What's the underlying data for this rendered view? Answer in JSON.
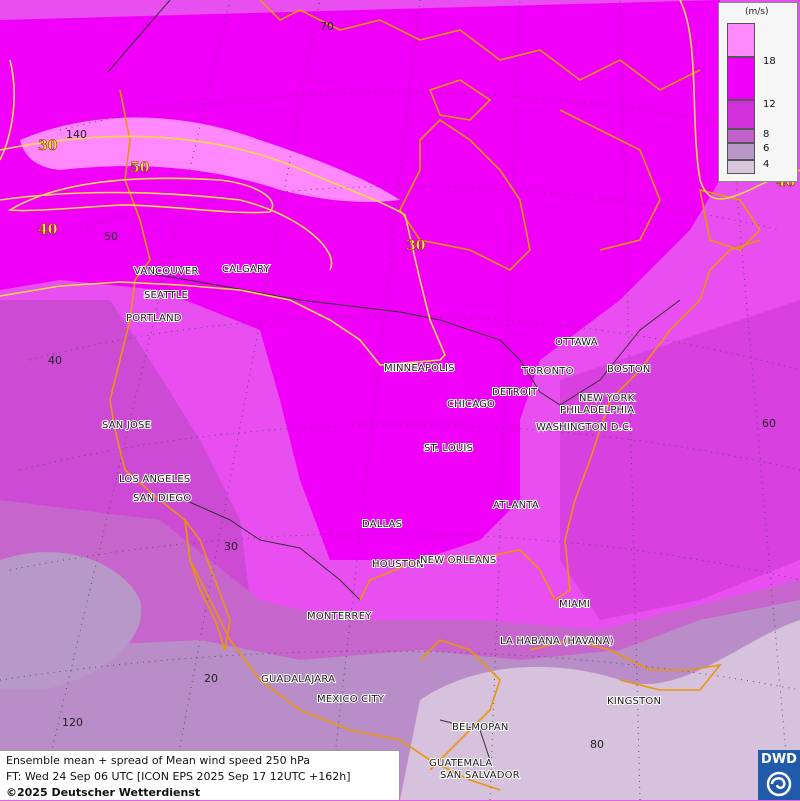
{
  "legend": {
    "unit": "(m/s)",
    "ticks": [
      "18",
      "12",
      "8",
      "6",
      "4"
    ],
    "colors": [
      "#ff88ff",
      "#f000f8",
      "#d030d8",
      "#c060c8",
      "#b898c8",
      "#d8c4dc"
    ]
  },
  "contour_labels": [
    {
      "text": "30"
    },
    {
      "text": "40"
    },
    {
      "text": "50"
    },
    {
      "text": "30"
    },
    {
      "text": "40"
    }
  ],
  "grid_labels": {
    "top_70": "70",
    "left_140": "140",
    "lat_50": "50",
    "lat_40": "40",
    "lat_30": "30",
    "lat_20": "20",
    "lon_120": "120",
    "right_60": "60",
    "bottom_80": "80"
  },
  "cities": {
    "vancouver": "VANCOUVER",
    "calgary": "CALGARY",
    "seattle": "SEATTLE",
    "portland": "PORTLAND",
    "minneapolis": "MINNEAPOLIS",
    "ottawa": "OTTAWA",
    "toronto": "TORONTO",
    "detroit": "DETROIT",
    "boston": "BOSTON",
    "chicago": "CHICAGO",
    "new_york": "NEW YORK",
    "philadelphia": "PHILADELPHIA",
    "washington": "WASHINGTON D.C.",
    "san_jose": "SAN JOSE",
    "st_louis": "ST. LOUIS",
    "los_angeles": "LOS ANGELES",
    "san_diego": "SAN DIEGO",
    "atlanta": "ATLANTA",
    "dallas": "DALLAS",
    "houston": "HOUSTON",
    "new_orleans": "NEW ORLEANS",
    "miami": "MIAMI",
    "monterrey": "MONTERREY",
    "la_habana": "LA HABANA (HAVANA)",
    "guadalajara": "GUADALAJARA",
    "mexico_city": "MEXICO CITY",
    "kingston": "KINGSTON",
    "belmopan": "BELMOPAN",
    "guatemala": "GUATEMALA",
    "san_salvador": "SAN SALVADOR"
  },
  "footer": {
    "line1": "Ensemble mean + spread of Mean wind speed 250 hPa",
    "line2": "FT: Wed 24 Sep 06 UTC [ICON EPS 2025 Sep 17 12UTC +162h]",
    "line3": "©2025 Deutscher Wetterdienst"
  },
  "logo": {
    "text": "DWD"
  }
}
